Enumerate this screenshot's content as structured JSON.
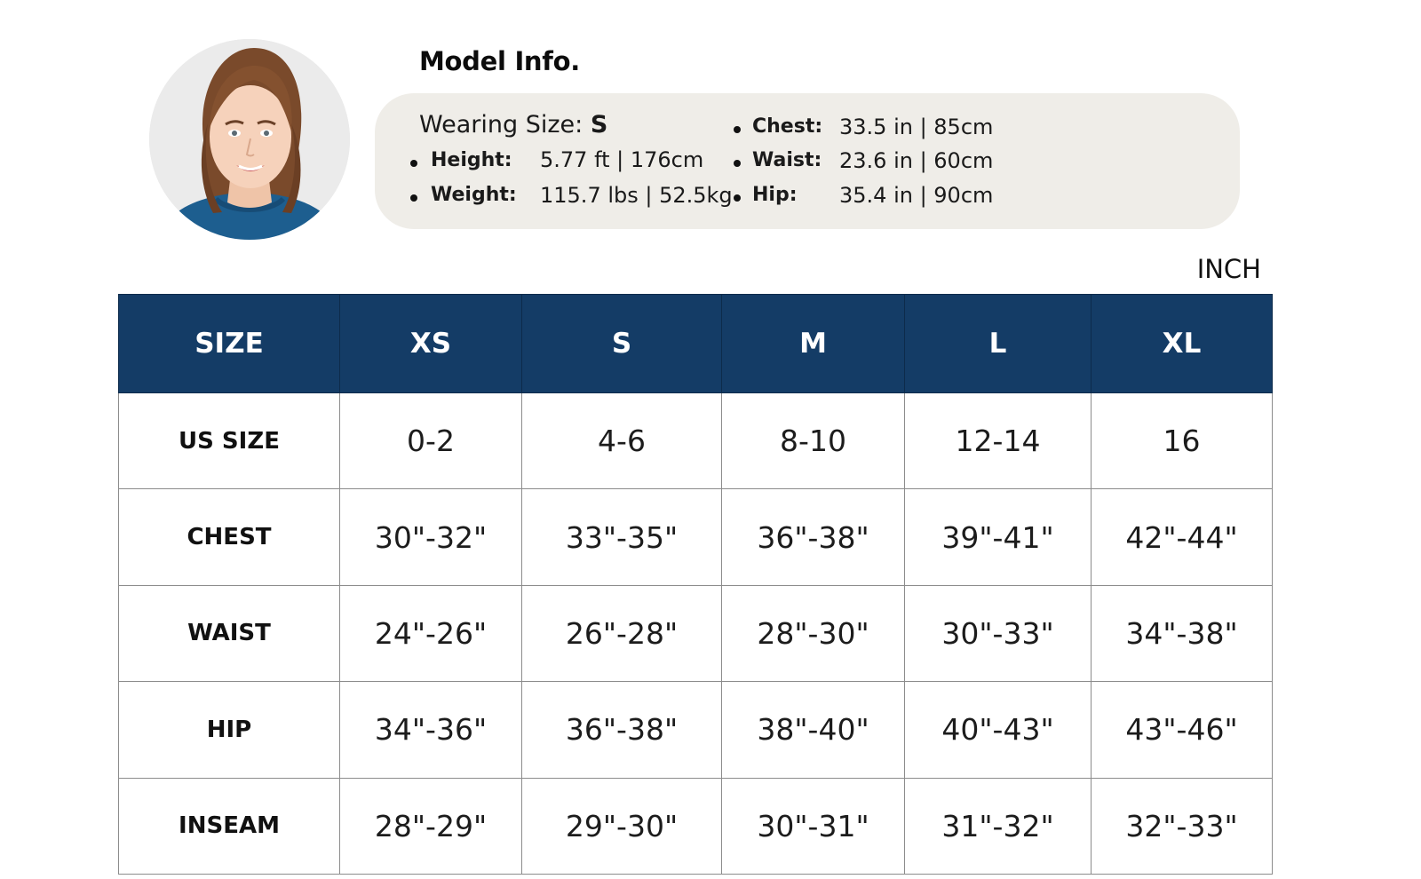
{
  "model": {
    "title": "Model Info.",
    "wearing_label": "Wearing Size:",
    "wearing_value": "S",
    "stats_left": [
      {
        "label": "Height:",
        "value": "5.77 ft  | 176cm"
      },
      {
        "label": "Weight:",
        "value": "115.7 lbs | 52.5kg"
      }
    ],
    "stats_right": [
      {
        "label": "Chest:",
        "value": "33.5 in | 85cm"
      },
      {
        "label": "Waist:",
        "value": "23.6 in | 60cm"
      },
      {
        "label": "Hip:",
        "value": "35.4 in | 90cm"
      }
    ]
  },
  "size_chart": {
    "unit": "INCH",
    "headers": [
      "SIZE",
      "XS",
      "S",
      "M",
      "L",
      "XL"
    ],
    "rows": [
      {
        "label": "US SIZE",
        "values": [
          "0-2",
          "4-6",
          "8-10",
          "12-14",
          "16"
        ]
      },
      {
        "label": "CHEST",
        "values": [
          "30\"-32\"",
          "33\"-35\"",
          "36\"-38\"",
          "39\"-41\"",
          "42\"-44\""
        ]
      },
      {
        "label": "WAIST",
        "values": [
          "24\"-26\"",
          "26\"-28\"",
          "28\"-30\"",
          "30\"-33\"",
          "34\"-38\""
        ]
      },
      {
        "label": "HIP",
        "values": [
          "34\"-36\"",
          "36\"-38\"",
          "38\"-40\"",
          "40\"-43\"",
          "43\"-46\""
        ]
      },
      {
        "label": "INSEAM",
        "values": [
          "28\"-29\"",
          "29\"-30\"",
          "30\"-31\"",
          "31\"-32\"",
          "32\"-33\""
        ]
      }
    ]
  },
  "colors": {
    "header_bg": "#143c66",
    "panel_bg": "#efede8",
    "sweater": "#1d5e8f"
  }
}
